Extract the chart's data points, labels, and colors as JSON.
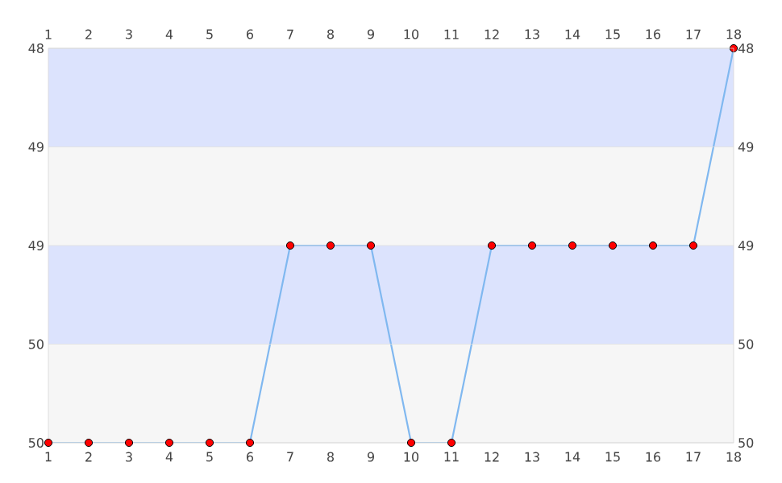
{
  "chart_data": {
    "type": "line",
    "x": [
      1,
      2,
      3,
      4,
      5,
      6,
      7,
      8,
      9,
      10,
      11,
      12,
      13,
      14,
      15,
      16,
      17,
      18
    ],
    "series": [
      {
        "color": "#80b8f0",
        "values": [
          50,
          50,
          50,
          50,
          50,
          50,
          49,
          49,
          49,
          50,
          50,
          49,
          49,
          49,
          49,
          49,
          49,
          48
        ]
      }
    ],
    "marker": "circle",
    "line_style": "solid",
    "grid": "y",
    "xlim": [
      1,
      18
    ],
    "xticks": [
      1,
      2,
      3,
      4,
      5,
      6,
      7,
      8,
      9,
      10,
      11,
      12,
      13,
      14,
      15,
      16,
      17,
      18
    ],
    "x2lim": [
      1,
      18
    ],
    "x2ticks": [
      1,
      2,
      3,
      4,
      5,
      6,
      7,
      8,
      9,
      10,
      11,
      12,
      13,
      14,
      15,
      16,
      17,
      18
    ],
    "ylim": [
      50,
      48
    ],
    "yticks": [
      48,
      {
        "value": 48.5,
        "label": "49"
      },
      49,
      {
        "value": 49.5,
        "label": "50"
      },
      50
    ],
    "y2lim": [
      50,
      48
    ],
    "y2ticks": [
      48,
      {
        "value": 48.5,
        "label": "49"
      },
      49,
      {
        "value": 49.5,
        "label": "50"
      },
      50
    ],
    "bands": [
      {
        "axis": "y",
        "from": 48,
        "to": 48.5,
        "color": "#dce3fd"
      },
      {
        "axis": "y",
        "from": 48.5,
        "to": 49,
        "color": "#f6f6f6"
      },
      {
        "axis": "y",
        "from": 49,
        "to": 49.5,
        "color": "#dce3fd"
      },
      {
        "axis": "y",
        "from": 49.5,
        "to": 50,
        "color": "#f6f6f6"
      }
    ]
  }
}
